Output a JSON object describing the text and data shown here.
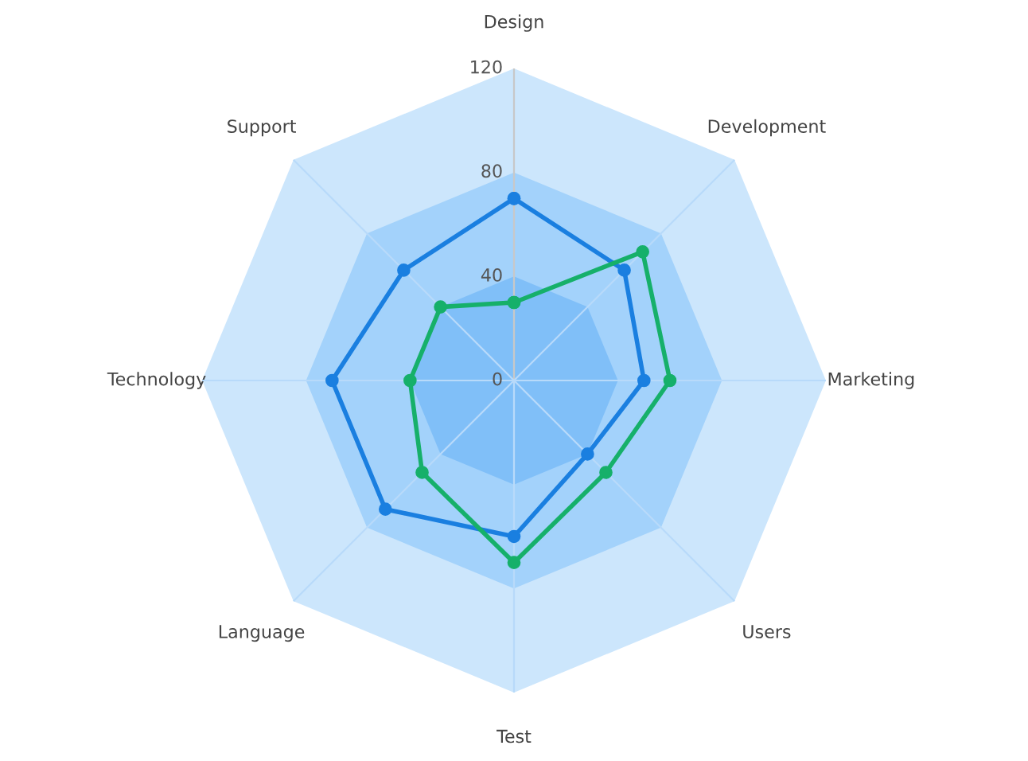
{
  "chart_data": {
    "type": "radar",
    "categories": [
      "Design",
      "Development",
      "Marketing",
      "Users",
      "Test",
      "Language",
      "Technology",
      "Support"
    ],
    "series": [
      {
        "color": "#1a7fe0",
        "values": [
          70,
          60,
          50,
          40,
          60,
          70,
          70,
          60
        ]
      },
      {
        "color": "#16b06a",
        "values": [
          30,
          70,
          60,
          50,
          70,
          50,
          40,
          40
        ]
      }
    ],
    "ylim": [
      0,
      120
    ],
    "yticks": [
      0,
      40,
      80,
      120
    ],
    "marker": "circle",
    "line_style": "solid",
    "grid": true,
    "legend": false
  }
}
